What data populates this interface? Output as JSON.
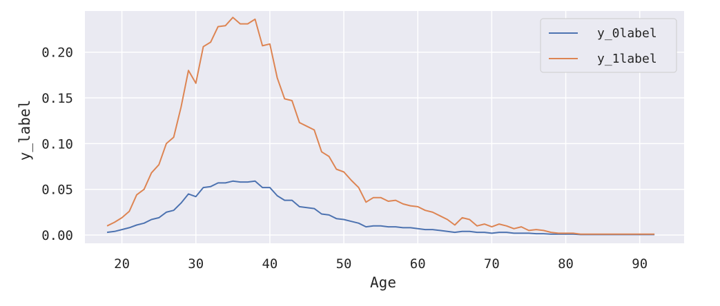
{
  "chart_data": {
    "type": "line",
    "xlabel": "Age",
    "ylabel": "y_label",
    "xlim": [
      15,
      96
    ],
    "ylim": [
      -0.009,
      0.245
    ],
    "xticks": [
      20,
      30,
      40,
      50,
      60,
      70,
      80,
      90
    ],
    "yticks": [
      0.0,
      0.05,
      0.1,
      0.15,
      0.2
    ],
    "ytick_labels": [
      "0.00",
      "0.05",
      "0.10",
      "0.15",
      "0.20"
    ],
    "grid": true,
    "legend_position": "top-right",
    "series": [
      {
        "name": "y_0label",
        "color": "#4c72b0",
        "points": [
          [
            18,
            0.003
          ],
          [
            19,
            0.004
          ],
          [
            20,
            0.006
          ],
          [
            21,
            0.008
          ],
          [
            22,
            0.011
          ],
          [
            23,
            0.013
          ],
          [
            24,
            0.017
          ],
          [
            25,
            0.019
          ],
          [
            26,
            0.025
          ],
          [
            27,
            0.027
          ],
          [
            28,
            0.035
          ],
          [
            29,
            0.045
          ],
          [
            30,
            0.042
          ],
          [
            31,
            0.052
          ],
          [
            32,
            0.053
          ],
          [
            33,
            0.057
          ],
          [
            34,
            0.057
          ],
          [
            35,
            0.059
          ],
          [
            36,
            0.058
          ],
          [
            37,
            0.058
          ],
          [
            38,
            0.059
          ],
          [
            39,
            0.052
          ],
          [
            40,
            0.052
          ],
          [
            41,
            0.043
          ],
          [
            42,
            0.038
          ],
          [
            43,
            0.038
          ],
          [
            44,
            0.031
          ],
          [
            45,
            0.03
          ],
          [
            46,
            0.029
          ],
          [
            47,
            0.023
          ],
          [
            48,
            0.022
          ],
          [
            49,
            0.018
          ],
          [
            50,
            0.017
          ],
          [
            51,
            0.015
          ],
          [
            52,
            0.013
          ],
          [
            53,
            0.009
          ],
          [
            54,
            0.01
          ],
          [
            55,
            0.01
          ],
          [
            56,
            0.009
          ],
          [
            57,
            0.009
          ],
          [
            58,
            0.008
          ],
          [
            59,
            0.008
          ],
          [
            60,
            0.007
          ],
          [
            61,
            0.006
          ],
          [
            62,
            0.006
          ],
          [
            63,
            0.005
          ],
          [
            64,
            0.004
          ],
          [
            65,
            0.003
          ],
          [
            66,
            0.004
          ],
          [
            67,
            0.004
          ],
          [
            68,
            0.003
          ],
          [
            69,
            0.003
          ],
          [
            70,
            0.002
          ],
          [
            71,
            0.003
          ],
          [
            72,
            0.003
          ],
          [
            73,
            0.002
          ],
          [
            74,
            0.002
          ],
          [
            75,
            0.002
          ],
          [
            76,
            0.0015
          ],
          [
            77,
            0.0015
          ],
          [
            78,
            0.001
          ],
          [
            79,
            0.001
          ],
          [
            80,
            0.001
          ],
          [
            81,
            0.001
          ],
          [
            82,
            0.0005
          ],
          [
            83,
            0.0005
          ],
          [
            84,
            0.0005
          ],
          [
            85,
            0.0005
          ],
          [
            86,
            0.0005
          ],
          [
            87,
            0.0005
          ],
          [
            88,
            0.0005
          ],
          [
            89,
            0.0005
          ],
          [
            90,
            0.0005
          ],
          [
            91,
            0.0005
          ],
          [
            92,
            0.0005
          ]
        ]
      },
      {
        "name": "y_1label",
        "color": "#dd8452",
        "points": [
          [
            18,
            0.01
          ],
          [
            19,
            0.014
          ],
          [
            20,
            0.019
          ],
          [
            21,
            0.026
          ],
          [
            22,
            0.044
          ],
          [
            23,
            0.05
          ],
          [
            24,
            0.068
          ],
          [
            25,
            0.077
          ],
          [
            26,
            0.1
          ],
          [
            27,
            0.107
          ],
          [
            28,
            0.14
          ],
          [
            29,
            0.18
          ],
          [
            30,
            0.166
          ],
          [
            31,
            0.206
          ],
          [
            32,
            0.211
          ],
          [
            33,
            0.228
          ],
          [
            34,
            0.229
          ],
          [
            35,
            0.238
          ],
          [
            36,
            0.231
          ],
          [
            37,
            0.231
          ],
          [
            38,
            0.236
          ],
          [
            39,
            0.207
          ],
          [
            40,
            0.209
          ],
          [
            41,
            0.172
          ],
          [
            42,
            0.149
          ],
          [
            43,
            0.147
          ],
          [
            44,
            0.123
          ],
          [
            45,
            0.119
          ],
          [
            46,
            0.115
          ],
          [
            47,
            0.091
          ],
          [
            48,
            0.086
          ],
          [
            49,
            0.072
          ],
          [
            50,
            0.069
          ],
          [
            51,
            0.06
          ],
          [
            52,
            0.052
          ],
          [
            53,
            0.036
          ],
          [
            54,
            0.041
          ],
          [
            55,
            0.041
          ],
          [
            56,
            0.037
          ],
          [
            57,
            0.038
          ],
          [
            58,
            0.034
          ],
          [
            59,
            0.032
          ],
          [
            60,
            0.031
          ],
          [
            61,
            0.027
          ],
          [
            62,
            0.025
          ],
          [
            63,
            0.021
          ],
          [
            64,
            0.017
          ],
          [
            65,
            0.011
          ],
          [
            66,
            0.019
          ],
          [
            67,
            0.017
          ],
          [
            68,
            0.01
          ],
          [
            69,
            0.012
          ],
          [
            70,
            0.009
          ],
          [
            71,
            0.012
          ],
          [
            72,
            0.01
          ],
          [
            73,
            0.007
          ],
          [
            74,
            0.009
          ],
          [
            75,
            0.005
          ],
          [
            76,
            0.006
          ],
          [
            77,
            0.005
          ],
          [
            78,
            0.003
          ],
          [
            79,
            0.002
          ],
          [
            80,
            0.002
          ],
          [
            81,
            0.002
          ],
          [
            82,
            0.001
          ],
          [
            83,
            0.001
          ],
          [
            84,
            0.001
          ],
          [
            85,
            0.001
          ],
          [
            86,
            0.001
          ],
          [
            87,
            0.001
          ],
          [
            88,
            0.001
          ],
          [
            89,
            0.001
          ],
          [
            90,
            0.001
          ],
          [
            91,
            0.001
          ],
          [
            92,
            0.001
          ]
        ]
      }
    ]
  }
}
